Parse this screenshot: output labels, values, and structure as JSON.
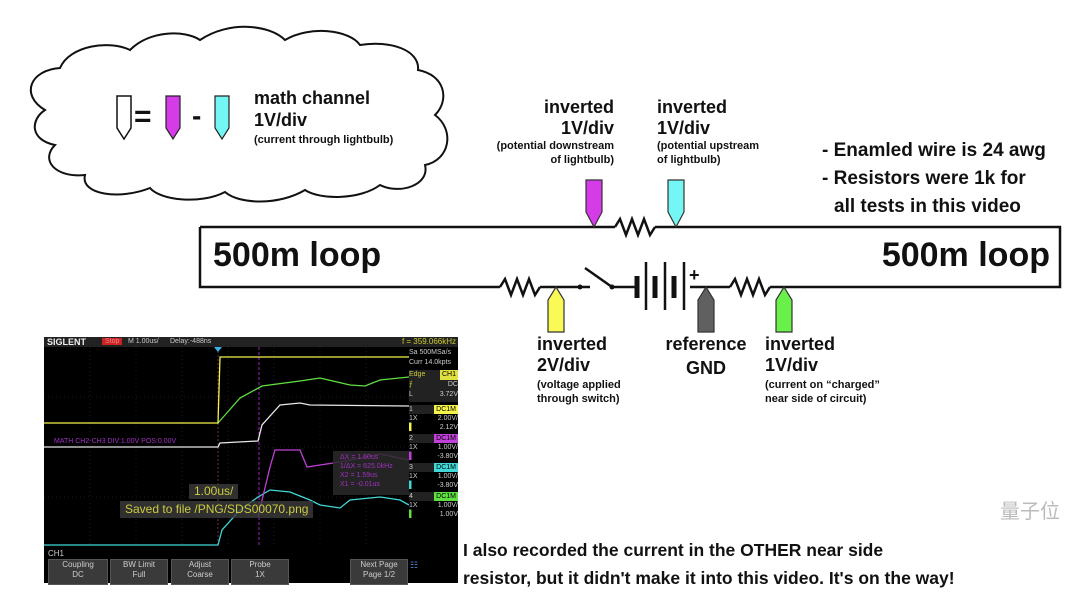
{
  "cloud": {
    "title": "math channel",
    "scale": "1V/div",
    "note": "(current through lightbulb)",
    "equals": "=",
    "minus": "-"
  },
  "probes": {
    "magenta": {
      "l1": "inverted",
      "l2": "1V/div",
      "note1": "(potential downstream",
      "note2": "of lightbulb)",
      "color": "#d63be8"
    },
    "cyan": {
      "l1": "inverted",
      "l2": "1V/div",
      "note1": "(potential upstream",
      "note2": "of lightbulb)",
      "color": "#74f6f4"
    },
    "yellow": {
      "l1": "inverted",
      "l2": "2V/div",
      "note1": "(voltage applied",
      "note2": "through switch)",
      "color": "#fafa56"
    },
    "ground": {
      "l1": "reference",
      "l2": "GND",
      "color": "#606060"
    },
    "green": {
      "l1": "inverted",
      "l2": "1V/div",
      "note1": "(current on “charged”",
      "note2": "near side of circuit)",
      "color": "#6af04a"
    }
  },
  "notes": [
    "- Enamled wire is 24 awg",
    "- Resistors were 1k for",
    "all tests in this video"
  ],
  "loop_left": "500m loop",
  "loop_right": "500m loop",
  "battery_plus": "+",
  "footer": {
    "line1": "I also recorded the current in the OTHER near side",
    "line2": "resistor, but it didn't make it into this video. It's on the way!"
  },
  "watermark": "量子位",
  "scope": {
    "brand": "SIGLENT",
    "status": "Stop",
    "timebase": "M 1.00us/",
    "delay": "Delay:-488ns",
    "freq": "f = 359.066kHz",
    "sample": "Sa 500MSa/s",
    "curr": "Curr 14.0kpts",
    "trigger": {
      "type": "Edge",
      "source": "CH1",
      "coupling": "DC",
      "level_label": "L",
      "level": "3.72V"
    },
    "channels": [
      {
        "num": "1",
        "coupling": "DC1M",
        "probe": "1X",
        "scale": "2.00V/",
        "offset": "2.12V",
        "color": "#f4f44a"
      },
      {
        "num": "2",
        "coupling": "DC1M",
        "probe": "1X",
        "scale": "1.00V/",
        "offset": "-3.80V",
        "color": "#c040d8"
      },
      {
        "num": "3",
        "coupling": "DC1M",
        "probe": "1X",
        "scale": "1.00V/",
        "offset": "-3.80V",
        "color": "#40d8d8"
      },
      {
        "num": "4",
        "coupling": "DC1M",
        "probe": "1X",
        "scale": "1.00V/",
        "offset": "1.00V",
        "color": "#60e040"
      }
    ],
    "math_label": "MATH  CH2-CH3  DIV:1.00V  POS:0.00V",
    "cursor": {
      "dx": "ΔX = 1.60us",
      "inv": "1/ΔX = 625.0kHz",
      "x2": "X2 = 1.59us",
      "x1": "X1 = -0.01us"
    },
    "msg1": "1.00us/",
    "msg2": "Saved to file /PNG/SDS00070.png",
    "menu_title": "CH1",
    "menu": [
      {
        "top": "Coupling",
        "bottom": "DC"
      },
      {
        "top": "BW Limit",
        "bottom": "Full"
      },
      {
        "top": "Adjust",
        "bottom": "Coarse"
      },
      {
        "top": "Probe",
        "bottom": "1X"
      },
      {
        "top": "Next Page",
        "bottom": "Page 1/2"
      }
    ]
  }
}
